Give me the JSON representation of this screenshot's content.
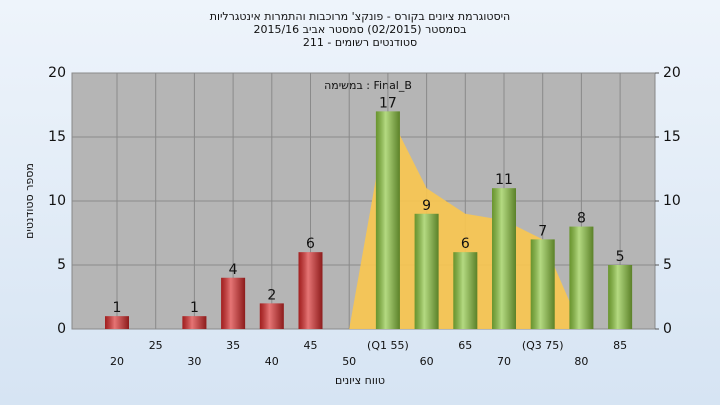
{
  "chart_data": {
    "type": "bar",
    "title": [
      "היסטוגרמת ציונים בקורס - פונקצ' מרוכבות והתמרות אינטגרליות",
      "בסמסטר (02/2015)  סמסטר אביב 2015/16",
      "סטודנטים רשומים - 211"
    ],
    "annotation": "במשימה : Final_B",
    "x_label": "טווח ציונים",
    "y_label": "מספר סטודנטים",
    "categories": [
      "20",
      "25",
      "30",
      "35",
      "40",
      "45",
      "50",
      "(Q1 55)",
      "60",
      "65",
      "70",
      "(Q3 75)",
      "80",
      "85"
    ],
    "values": [
      1,
      0,
      1,
      4,
      2,
      6,
      0,
      17,
      9,
      6,
      11,
      7,
      8,
      5
    ],
    "bar_colors": [
      "#d82a2a",
      "#d82a2a",
      "#d82a2a",
      "#d82a2a",
      "#d82a2a",
      "#d82a2a",
      "#d82a2a",
      "#8cc63e",
      "#8cc63e",
      "#8cc63e",
      "#8cc63e",
      "#8cc63e",
      "#8cc63e",
      "#8cc63e"
    ],
    "curve": {
      "color": "#f9c74f",
      "values": [
        null,
        null,
        null,
        null,
        null,
        null,
        0,
        17,
        11,
        9,
        8.5,
        7,
        0,
        null
      ]
    },
    "ylim": [
      0,
      20
    ],
    "yticks": [
      0,
      5,
      10,
      15,
      20
    ],
    "y2lim": [
      0,
      20
    ],
    "y2ticks": [
      0,
      5,
      10,
      15,
      20
    ],
    "grid": true
  }
}
